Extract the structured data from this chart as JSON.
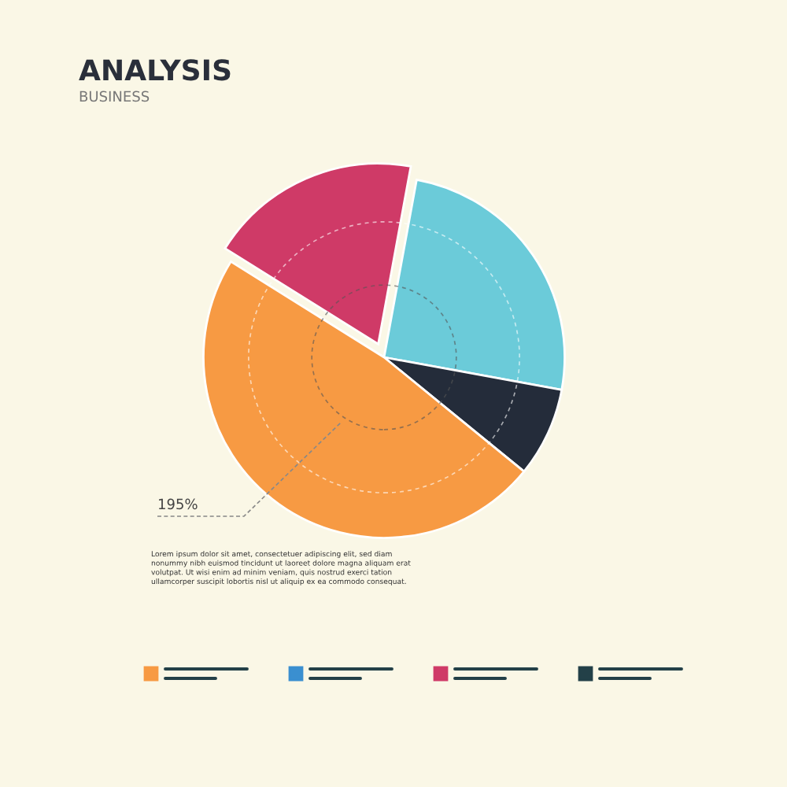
{
  "chart_data": {
    "type": "pie",
    "title": "ANALYSIS",
    "subtitle": "BUSINESS",
    "categories": [
      null,
      null,
      null,
      null
    ],
    "values": [
      19,
      25,
      8,
      48
    ],
    "colors": [
      "#cf3a67",
      "#6bcbd9",
      "#242c3a",
      "#f79a43"
    ],
    "annotations": [
      "195%",
      "Lorem ipsum dolor sit amet, consectetuer adipiscing elit, sed diam\nnonummy nibh euismod tincidunt ut laoreet dolore magna aliquam erat\nvolutpat. Ut wisi enim ad minim veniam, quis nostrud exerci tation\nullamcorper suscipit lobortis nisl ut aliquip ex ea commodo consequat."
    ]
  }
}
